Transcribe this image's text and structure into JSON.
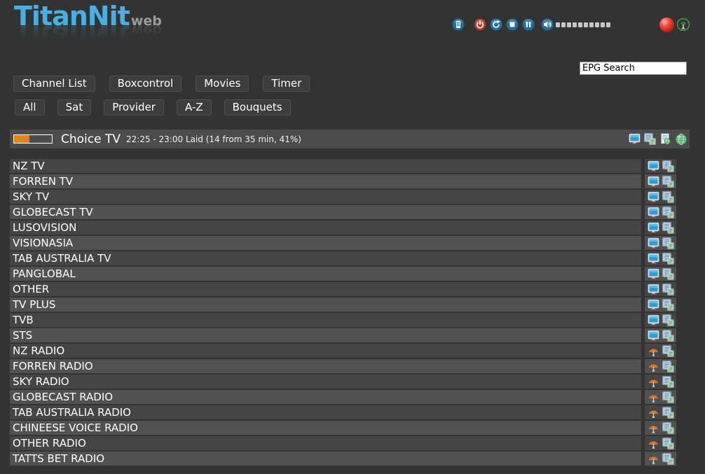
{
  "colors": {
    "page_bg": "#333333",
    "logo_blue": "#47b0e0",
    "logo_web_gray": "#9c9c9c",
    "button_bg": "#3d3d3d",
    "titlebar_bg": "#4c4c4c",
    "row_dark": "#454545",
    "row_light": "#515151",
    "progress_orange": "#e6850e",
    "icon_blue": "#1d6d99",
    "icon_red": "#b03422",
    "record_red": "#c81e10",
    "antenna_green": "#38a348",
    "radio_orange": "#e2762a"
  },
  "logo": {
    "main": "TitanNit",
    "sub": "web"
  },
  "topbar": {
    "buttons": [
      {
        "name": "remote",
        "icon": "remote"
      },
      {
        "name": "power",
        "icon": "power"
      },
      {
        "name": "refresh",
        "icon": "refresh"
      },
      {
        "name": "stop",
        "icon": "stop"
      },
      {
        "name": "pause",
        "icon": "pause"
      },
      {
        "name": "volume",
        "icon": "speaker"
      }
    ],
    "volume_segments": 10
  },
  "search": {
    "value": "EPG Search"
  },
  "nav_primary": [
    {
      "label": "Channel List"
    },
    {
      "label": "Boxcontrol"
    },
    {
      "label": "Movies"
    },
    {
      "label": "Timer"
    }
  ],
  "nav_secondary": [
    {
      "label": "All"
    },
    {
      "label": "Sat"
    },
    {
      "label": "Provider"
    },
    {
      "label": "A-Z"
    },
    {
      "label": "Bouquets"
    }
  ],
  "now_playing": {
    "channel": "Choice TV",
    "epg_info": "22:25 - 23:00 Laid (14 from 35 min, 41%)",
    "progress_percent": 41,
    "action_icons": [
      {
        "name": "tv-stream",
        "icon": "monitor"
      },
      {
        "name": "epg-list",
        "icon": "epglist"
      },
      {
        "name": "epg-web",
        "icon": "docglobe"
      },
      {
        "name": "web",
        "icon": "globe"
      }
    ]
  },
  "channels": [
    {
      "name": "NZ TV",
      "type": "tv"
    },
    {
      "name": "FORREN TV",
      "type": "tv"
    },
    {
      "name": "SKY TV",
      "type": "tv"
    },
    {
      "name": "GLOBECAST TV",
      "type": "tv"
    },
    {
      "name": "LUSOVISION",
      "type": "tv"
    },
    {
      "name": "VISIONASIA",
      "type": "tv"
    },
    {
      "name": "TAB AUSTRALIA TV",
      "type": "tv"
    },
    {
      "name": "PANGLOBAL",
      "type": "tv"
    },
    {
      "name": "OTHER",
      "type": "tv"
    },
    {
      "name": "TV PLUS",
      "type": "tv"
    },
    {
      "name": "TVB",
      "type": "tv"
    },
    {
      "name": "STS",
      "type": "tv"
    },
    {
      "name": "NZ RADIO",
      "type": "radio"
    },
    {
      "name": "FORREN RADIO",
      "type": "radio"
    },
    {
      "name": "SKY RADIO",
      "type": "radio"
    },
    {
      "name": "GLOBECAST RADIO",
      "type": "radio"
    },
    {
      "name": "TAB AUSTRALIA RADIO",
      "type": "radio"
    },
    {
      "name": "CHINEESE VOICE RADIO",
      "type": "radio"
    },
    {
      "name": "OTHER RADIO",
      "type": "radio"
    },
    {
      "name": "TATTS BET RADIO",
      "type": "radio"
    }
  ]
}
